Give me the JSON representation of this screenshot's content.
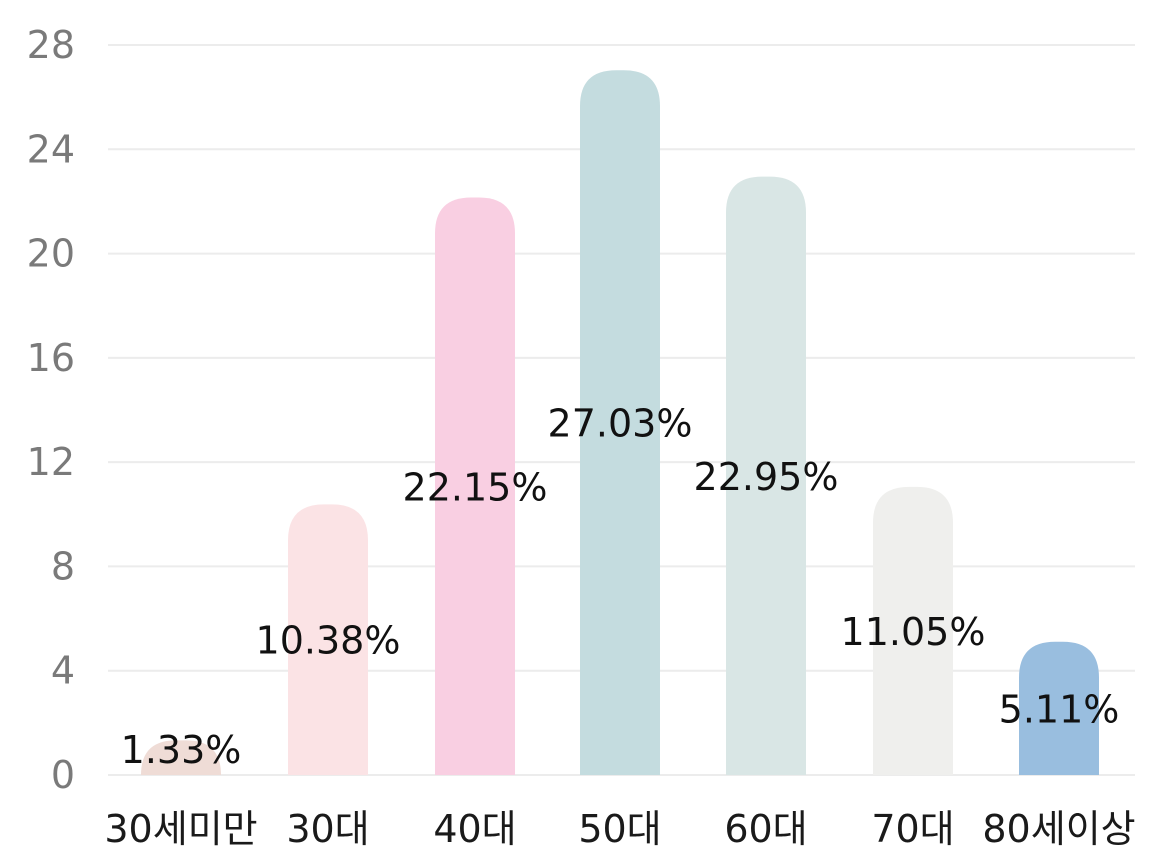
{
  "chart_data": {
    "type": "bar",
    "title": "",
    "xlabel": "",
    "ylabel": "",
    "categories": [
      "30세미만",
      "30대",
      "40대",
      "50대",
      "60대",
      "70대",
      "80세이상"
    ],
    "values": [
      1.33,
      10.38,
      22.15,
      27.03,
      22.95,
      11.05,
      5.11
    ],
    "value_labels": [
      "1.33%",
      "10.38%",
      "22.15%",
      "27.03%",
      "22.95%",
      "11.05%",
      "5.11%"
    ],
    "colors": [
      "#efdcd6",
      "#fbe3e5",
      "#f9cfe2",
      "#c4dcdf",
      "#d9e6e5",
      "#efefed",
      "#99bedf"
    ],
    "ylim": [
      0,
      28
    ],
    "yticks": [
      0,
      4,
      8,
      12,
      16,
      20,
      24,
      28
    ],
    "ytick_labels": [
      "0",
      "4",
      "8",
      "12",
      "16",
      "20",
      "24",
      "28"
    ],
    "grid": true,
    "legend": "none"
  }
}
